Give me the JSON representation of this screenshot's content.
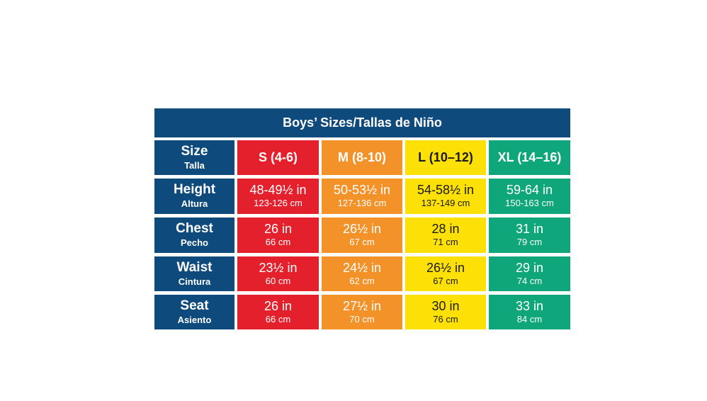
{
  "title": "Boys’ Sizes/Tallas de Niño",
  "colors": {
    "header_navy": "#0f4a7c",
    "s_red": "#e4202d",
    "m_orange": "#f4922a",
    "l_yellow": "#fde006",
    "xl_green": "#0fa67b"
  },
  "size_row": {
    "label": "Size",
    "label_es": "Talla",
    "sizes": [
      "S (4-6)",
      "M (8-10)",
      "L (10–12)",
      "XL (14–16)"
    ]
  },
  "rows": [
    {
      "label": "Height",
      "label_es": "Altura",
      "values": [
        {
          "in": "48-49½ in",
          "cm": "123-126 cm"
        },
        {
          "in": "50-53½ in",
          "cm": "127-136 cm"
        },
        {
          "in": "54-58½ in",
          "cm": "137-149 cm"
        },
        {
          "in": "59-64 in",
          "cm": "150-163 cm"
        }
      ]
    },
    {
      "label": "Chest",
      "label_es": "Pecho",
      "values": [
        {
          "in": "26 in",
          "cm": "66 cm"
        },
        {
          "in": "26½ in",
          "cm": "67 cm"
        },
        {
          "in": "28 in",
          "cm": "71 cm"
        },
        {
          "in": "31 in",
          "cm": "79 cm"
        }
      ]
    },
    {
      "label": "Waist",
      "label_es": "Cintura",
      "values": [
        {
          "in": "23½ in",
          "cm": "60 cm"
        },
        {
          "in": "24½ in",
          "cm": "62 cm"
        },
        {
          "in": "26½ in",
          "cm": "67 cm"
        },
        {
          "in": "29 in",
          "cm": "74 cm"
        }
      ]
    },
    {
      "label": "Seat",
      "label_es": "Asiento",
      "values": [
        {
          "in": "26 in",
          "cm": "66 cm"
        },
        {
          "in": "27½ in",
          "cm": "70 cm"
        },
        {
          "in": "30 in",
          "cm": "76 cm"
        },
        {
          "in": "33 in",
          "cm": "84 cm"
        }
      ]
    }
  ]
}
